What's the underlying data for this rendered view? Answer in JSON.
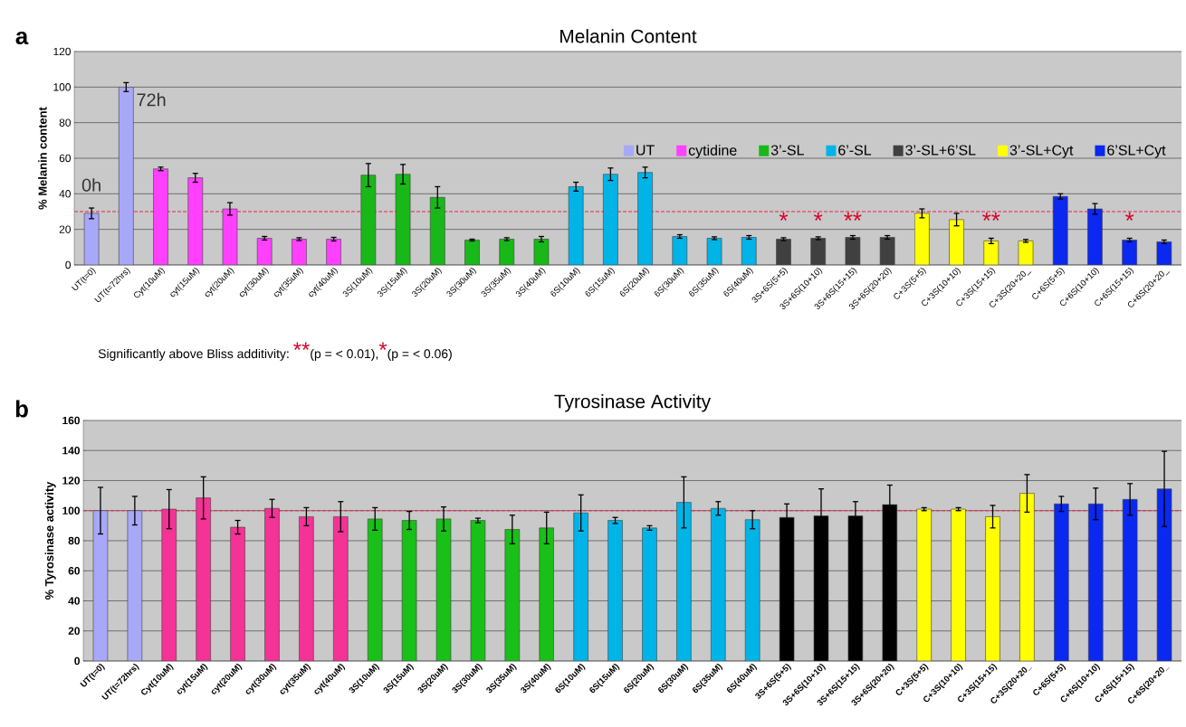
{
  "chart_data": [
    {
      "type": "bar",
      "title": "Melanin Content",
      "ylabel": "% Melanin content",
      "categories": [
        "UT(t=0)",
        "UT(t=72hrs)",
        "Cyt(10uM)",
        "cyt(15uM)",
        "cyt(20uM)",
        "cyt(30uM)",
        "cyt(35uM)",
        "cyt(40uM)",
        "3S(10uM)",
        "3S(15uM)",
        "3S(20uM)",
        "3S(30uM)",
        "3S(35uM)",
        "3S(40uM)",
        "6S(10uM)",
        "6S(15uM)",
        "6S(20uM)",
        "6S(30uM)",
        "6S(35uM)",
        "6S(40uM)",
        "3S+6S(5+5)",
        "3S+6S(10+10)",
        "3S+6S(15+15)",
        "3S+6S(20+20)",
        "C+3S(5+5)",
        "C+3S(10+10)",
        "C+3S(15+15)",
        "C+3S(20+20_",
        "C+6S(5+5)",
        "C+6S(10+10)",
        "C+6S(15+15)",
        "C+6S(20+20_"
      ],
      "series": [
        {
          "name": "UT",
          "color": "#a8a8f8",
          "values": [
            29,
            100,
            null,
            null,
            null,
            null,
            null,
            null,
            null,
            null,
            null,
            null,
            null,
            null,
            null,
            null,
            null,
            null,
            null,
            null,
            null,
            null,
            null,
            null,
            null,
            null,
            null,
            null,
            null,
            null,
            null,
            null
          ],
          "errors": [
            3,
            2.5,
            null,
            null,
            null,
            null,
            null,
            null,
            null,
            null,
            null,
            null,
            null,
            null,
            null,
            null,
            null,
            null,
            null,
            null,
            null,
            null,
            null,
            null,
            null,
            null,
            null,
            null,
            null,
            null,
            null,
            null
          ]
        },
        {
          "name": "cytidine",
          "color": "#ff40ff",
          "values": [
            null,
            null,
            54,
            49,
            31.5,
            15,
            14.5,
            14.5,
            null,
            null,
            null,
            null,
            null,
            null,
            null,
            null,
            null,
            null,
            null,
            null,
            null,
            null,
            null,
            null,
            null,
            null,
            null,
            null,
            null,
            null,
            null,
            null
          ],
          "errors": [
            null,
            null,
            1,
            2.5,
            3.5,
            1,
            0.8,
            1,
            null,
            null,
            null,
            null,
            null,
            null,
            null,
            null,
            null,
            null,
            null,
            null,
            null,
            null,
            null,
            null,
            null,
            null,
            null,
            null,
            null,
            null,
            null,
            null
          ]
        },
        {
          "name": "3’-SL",
          "color": "#18b818",
          "values": [
            null,
            null,
            null,
            null,
            null,
            null,
            null,
            null,
            50.5,
            51,
            38,
            14,
            14.5,
            14.5,
            null,
            null,
            null,
            null,
            null,
            null,
            null,
            null,
            null,
            null,
            null,
            null,
            null,
            null,
            null,
            null,
            null,
            null
          ],
          "errors": [
            null,
            null,
            null,
            null,
            null,
            null,
            null,
            null,
            6.5,
            5.5,
            6,
            0.5,
            0.8,
            1.5,
            null,
            null,
            null,
            null,
            null,
            null,
            null,
            null,
            null,
            null,
            null,
            null,
            null,
            null,
            null,
            null,
            null,
            null
          ]
        },
        {
          "name": "6’-SL",
          "color": "#00b4e8",
          "values": [
            null,
            null,
            null,
            null,
            null,
            null,
            null,
            null,
            null,
            null,
            null,
            null,
            null,
            null,
            44,
            51,
            52,
            16,
            15,
            15.5,
            null,
            null,
            null,
            null,
            null,
            null,
            null,
            null,
            null,
            null,
            null,
            null
          ],
          "errors": [
            null,
            null,
            null,
            null,
            null,
            null,
            null,
            null,
            null,
            null,
            null,
            null,
            null,
            null,
            2.5,
            3.5,
            3,
            1,
            0.8,
            1,
            null,
            null,
            null,
            null,
            null,
            null,
            null,
            null,
            null,
            null,
            null,
            null
          ]
        },
        {
          "name": "3’-SL+6’SL",
          "color": "#404040",
          "values": [
            null,
            null,
            null,
            null,
            null,
            null,
            null,
            null,
            null,
            null,
            null,
            null,
            null,
            null,
            null,
            null,
            null,
            null,
            null,
            null,
            14.5,
            15,
            15.5,
            15.5,
            null,
            null,
            null,
            null,
            null,
            null,
            null,
            null
          ],
          "errors": [
            null,
            null,
            null,
            null,
            null,
            null,
            null,
            null,
            null,
            null,
            null,
            null,
            null,
            null,
            null,
            null,
            null,
            null,
            null,
            null,
            0.8,
            0.8,
            1,
            1,
            null,
            null,
            null,
            null,
            null,
            null,
            null,
            null
          ]
        },
        {
          "name": "3’-SL+Cyt",
          "color": "#ffff00",
          "values": [
            null,
            null,
            null,
            null,
            null,
            null,
            null,
            null,
            null,
            null,
            null,
            null,
            null,
            null,
            null,
            null,
            null,
            null,
            null,
            null,
            null,
            null,
            null,
            null,
            29,
            25.5,
            13.5,
            13.5,
            null,
            null,
            null,
            null
          ],
          "errors": [
            null,
            null,
            null,
            null,
            null,
            null,
            null,
            null,
            null,
            null,
            null,
            null,
            null,
            null,
            null,
            null,
            null,
            null,
            null,
            null,
            null,
            null,
            null,
            null,
            2.5,
            3.5,
            1.5,
            0.8,
            null,
            null,
            null,
            null
          ]
        },
        {
          "name": "6’SL+Cyt",
          "color": "#0a28f0",
          "values": [
            null,
            null,
            null,
            null,
            null,
            null,
            null,
            null,
            null,
            null,
            null,
            null,
            null,
            null,
            null,
            null,
            null,
            null,
            null,
            null,
            null,
            null,
            null,
            null,
            null,
            null,
            null,
            null,
            38.5,
            31.5,
            14,
            13
          ],
          "errors": [
            null,
            null,
            null,
            null,
            null,
            null,
            null,
            null,
            null,
            null,
            null,
            null,
            null,
            null,
            null,
            null,
            null,
            null,
            null,
            null,
            null,
            null,
            null,
            null,
            null,
            null,
            null,
            null,
            1.5,
            3,
            1,
            1
          ]
        }
      ],
      "ylim": [
        0,
        120
      ],
      "yticks": [
        0,
        20,
        40,
        60,
        80,
        100,
        120
      ],
      "grid": "y",
      "legend": "top",
      "ref_lines": [
        {
          "axis": "y",
          "value": 30,
          "color": "#e8254a",
          "line_style": "dashed"
        }
      ],
      "annotations": [
        "a",
        "Significantly above Bliss additivity:",
        "**",
        "(p = < 0.01),",
        "*",
        "(p = < 0.06)",
        "0h",
        "72h",
        "*",
        "*",
        "**",
        "**",
        "*"
      ]
    },
    {
      "type": "bar",
      "title": "Tyrosinase Activity",
      "ylabel": "% Tyrosinase activity",
      "categories": [
        "UT(t=0)",
        "UT(t=72hrs)",
        "Cyt(10uM)",
        "cyt(15uM)",
        "cyt(20uM)",
        "cyt(30uM)",
        "cyt(35uM)",
        "cyt(40uM)",
        "3S(10uM)",
        "3S(15uM)",
        "3S(20uM)",
        "3S(30uM)",
        "3S(35uM)",
        "3S(40uM)",
        "6S(10uM)",
        "6S(15uM)",
        "6S(20uM)",
        "6S(30uM)",
        "6S(35uM)",
        "6S(40uM)",
        "3S+6S(5+5)",
        "3S+6S(10+10)",
        "3S+6S(15+15)",
        "3S+6S(20+20)",
        "C+3S(5+5)",
        "C+3S(10+10)",
        "C+3S(15+15)",
        "C+3S(20+20_",
        "C+6S(5+5)",
        "C+6S(10+10)",
        "C+6S(15+15)",
        "C+6S(20+20_"
      ],
      "series": [
        {
          "color": "#a8a8f8",
          "values": [
            100,
            100,
            null,
            null,
            null,
            null,
            null,
            null,
            null,
            null,
            null,
            null,
            null,
            null,
            null,
            null,
            null,
            null,
            null,
            null,
            null,
            null,
            null,
            null,
            null,
            null,
            null,
            null,
            null,
            null,
            null,
            null
          ],
          "errors": [
            15.5,
            9.5,
            null,
            null,
            null,
            null,
            null,
            null,
            null,
            null,
            null,
            null,
            null,
            null,
            null,
            null,
            null,
            null,
            null,
            null,
            null,
            null,
            null,
            null,
            null,
            null,
            null,
            null,
            null,
            null,
            null,
            null
          ]
        },
        {
          "color": "#f53296",
          "values": [
            null,
            null,
            101,
            108.5,
            89,
            101.5,
            96,
            96,
            null,
            null,
            null,
            null,
            null,
            null,
            null,
            null,
            null,
            null,
            null,
            null,
            null,
            null,
            null,
            null,
            null,
            null,
            null,
            null,
            null,
            null,
            null,
            null
          ],
          "errors": [
            null,
            null,
            13,
            14,
            4.5,
            6,
            6,
            10,
            null,
            null,
            null,
            null,
            null,
            null,
            null,
            null,
            null,
            null,
            null,
            null,
            null,
            null,
            null,
            null,
            null,
            null,
            null,
            null,
            null,
            null,
            null,
            null
          ]
        },
        {
          "color": "#18c018",
          "values": [
            null,
            null,
            null,
            null,
            null,
            null,
            null,
            null,
            94.5,
            93.5,
            94.5,
            93.5,
            87.5,
            88.5,
            null,
            null,
            null,
            null,
            null,
            null,
            null,
            null,
            null,
            null,
            null,
            null,
            null,
            null,
            null,
            null,
            null,
            null
          ],
          "errors": [
            null,
            null,
            null,
            null,
            null,
            null,
            null,
            null,
            7.5,
            6,
            8,
            1.5,
            9.5,
            10.5,
            null,
            null,
            null,
            null,
            null,
            null,
            null,
            null,
            null,
            null,
            null,
            null,
            null,
            null,
            null,
            null,
            null,
            null
          ]
        },
        {
          "color": "#00b4e8",
          "values": [
            null,
            null,
            null,
            null,
            null,
            null,
            null,
            null,
            null,
            null,
            null,
            null,
            null,
            null,
            98.5,
            93.5,
            88.5,
            105.5,
            101.5,
            94,
            null,
            null,
            null,
            null,
            null,
            null,
            null,
            null,
            null,
            null,
            null,
            null
          ],
          "errors": [
            null,
            null,
            null,
            null,
            null,
            null,
            null,
            null,
            null,
            null,
            null,
            null,
            null,
            null,
            12,
            2,
            1.5,
            17,
            4.5,
            6,
            null,
            null,
            null,
            null,
            null,
            null,
            null,
            null,
            null,
            null,
            null,
            null
          ]
        },
        {
          "color": "#000000",
          "values": [
            null,
            null,
            null,
            null,
            null,
            null,
            null,
            null,
            null,
            null,
            null,
            null,
            null,
            null,
            null,
            null,
            null,
            null,
            null,
            null,
            95.5,
            96.5,
            96.5,
            104,
            null,
            null,
            null,
            null,
            null,
            null,
            null,
            null
          ],
          "errors": [
            null,
            null,
            null,
            null,
            null,
            null,
            null,
            null,
            null,
            null,
            null,
            null,
            null,
            null,
            null,
            null,
            null,
            null,
            null,
            null,
            9,
            18,
            9.5,
            13,
            null,
            null,
            null,
            null,
            null,
            null,
            null,
            null
          ]
        },
        {
          "color": "#ffff00",
          "values": [
            null,
            null,
            null,
            null,
            null,
            null,
            null,
            null,
            null,
            null,
            null,
            null,
            null,
            null,
            null,
            null,
            null,
            null,
            null,
            null,
            null,
            null,
            null,
            null,
            101,
            101,
            96,
            111.5,
            null,
            null,
            null,
            null
          ],
          "errors": [
            null,
            null,
            null,
            null,
            null,
            null,
            null,
            null,
            null,
            null,
            null,
            null,
            null,
            null,
            null,
            null,
            null,
            null,
            null,
            null,
            null,
            null,
            null,
            null,
            1,
            1,
            7.5,
            12.5,
            null,
            null,
            null,
            null
          ]
        },
        {
          "color": "#0a28f0",
          "values": [
            null,
            null,
            null,
            null,
            null,
            null,
            null,
            null,
            null,
            null,
            null,
            null,
            null,
            null,
            null,
            null,
            null,
            null,
            null,
            null,
            null,
            null,
            null,
            null,
            null,
            null,
            null,
            null,
            104.5,
            104.5,
            107.5,
            114.5
          ],
          "errors": [
            null,
            null,
            null,
            null,
            null,
            null,
            null,
            null,
            null,
            null,
            null,
            null,
            null,
            null,
            null,
            null,
            null,
            null,
            null,
            null,
            null,
            null,
            null,
            null,
            null,
            null,
            null,
            null,
            5,
            10.5,
            10.5,
            25
          ]
        }
      ],
      "ylim": [
        0,
        160
      ],
      "yticks": [
        0,
        20,
        40,
        60,
        80,
        100,
        120,
        140,
        160
      ],
      "grid": "y",
      "ref_lines": [
        {
          "axis": "y",
          "value": 100,
          "color": "#e8254a",
          "line_style": "dashed"
        }
      ],
      "annotations": [
        "b"
      ]
    }
  ]
}
